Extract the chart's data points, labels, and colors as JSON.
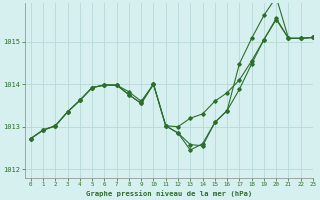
{
  "title": "Graphe pression niveau de la mer (hPa)",
  "bg_color": "#d6f0f0",
  "grid_color": "#b8d8d8",
  "line_color": "#2d6e2d",
  "xlim": [
    -0.5,
    23
  ],
  "ylim": [
    1011.8,
    1015.9
  ],
  "yticks": [
    1012,
    1013,
    1014,
    1015
  ],
  "xticks": [
    0,
    1,
    2,
    3,
    4,
    5,
    6,
    7,
    8,
    9,
    10,
    11,
    12,
    13,
    14,
    15,
    16,
    17,
    18,
    19,
    20,
    21,
    22,
    23
  ],
  "series": [
    [
      1012.72,
      1012.92,
      1013.02,
      1013.35,
      1013.62,
      1013.92,
      1013.98,
      1013.98,
      1013.82,
      1013.6,
      1014.0,
      1013.02,
      1013.0,
      1013.2,
      1013.3,
      1013.6,
      1013.8,
      1014.1,
      1014.55,
      1015.05,
      1015.52,
      1015.08,
      1015.08,
      1015.1
    ],
    [
      1012.72,
      1012.92,
      1013.02,
      1013.35,
      1013.62,
      1013.92,
      1013.98,
      1013.98,
      1013.75,
      1013.55,
      1014.0,
      1013.02,
      1012.85,
      1012.58,
      1012.55,
      1013.1,
      1013.38,
      1013.88,
      1014.48,
      1015.05,
      1015.55,
      1015.08,
      1015.08,
      1015.1
    ],
    [
      1012.72,
      1012.92,
      1013.02,
      1013.35,
      1013.62,
      1013.92,
      1013.98,
      1013.98,
      1013.75,
      1013.55,
      1014.0,
      1013.02,
      1012.85,
      1012.45,
      1012.6,
      1013.1,
      1013.38,
      1014.48,
      1015.08,
      1015.62,
      1016.05,
      1015.08,
      1015.08,
      1015.1
    ]
  ]
}
